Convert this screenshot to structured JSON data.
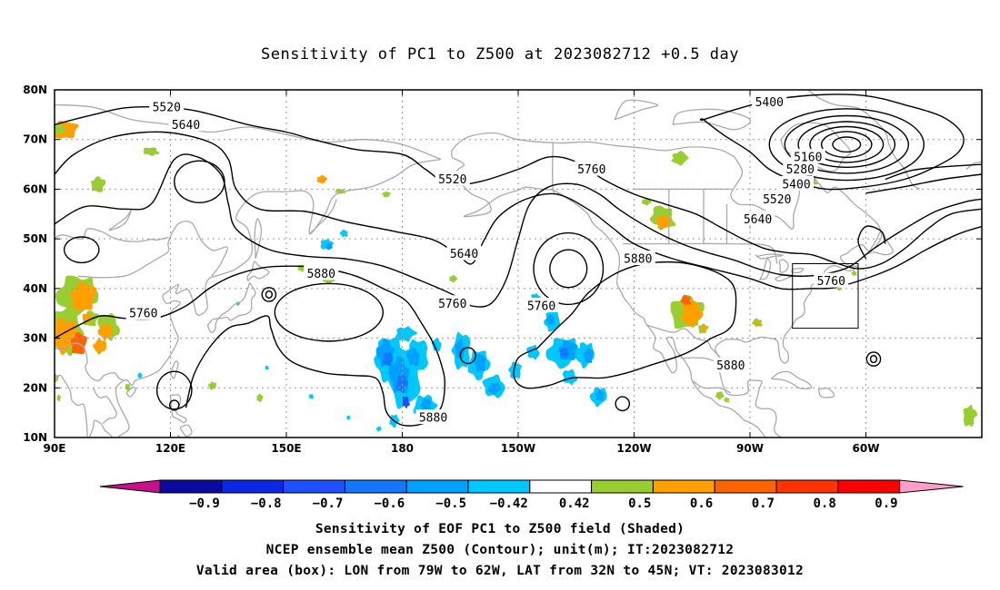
{
  "title": "Sensitivity of PC1 to Z500 at 2023082712 +0.5 day",
  "lat_labels": [
    "80N",
    "70N",
    "60N",
    "50N",
    "40N",
    "30N",
    "20N",
    "10N"
  ],
  "lon_labels": [
    "90E",
    "120E",
    "150E",
    "180",
    "150W",
    "120W",
    "90W",
    "60W"
  ],
  "contour_labels": [
    {
      "text": "5520",
      "lon": 119,
      "lat": 76.5
    },
    {
      "text": "5640",
      "lon": 124,
      "lat": 73
    },
    {
      "text": "5520",
      "lon": 193,
      "lat": 62
    },
    {
      "text": "5760",
      "lon": 229,
      "lat": 64
    },
    {
      "text": "5400",
      "lon": 275,
      "lat": 77.5
    },
    {
      "text": "5160",
      "lon": 285,
      "lat": 66.5
    },
    {
      "text": "5280",
      "lon": 283,
      "lat": 64
    },
    {
      "text": "5400",
      "lon": 282,
      "lat": 61
    },
    {
      "text": "5520",
      "lon": 277,
      "lat": 58
    },
    {
      "text": "5640",
      "lon": 272,
      "lat": 54
    },
    {
      "text": "5640",
      "lon": 196,
      "lat": 47
    },
    {
      "text": "5880",
      "lon": 159,
      "lat": 43
    },
    {
      "text": "5880",
      "lon": 241,
      "lat": 46
    },
    {
      "text": "5760",
      "lon": 193,
      "lat": 37
    },
    {
      "text": "5760",
      "lon": 216,
      "lat": 36.5
    },
    {
      "text": "5760",
      "lon": 291,
      "lat": 41.5
    },
    {
      "text": "5760",
      "lon": 113,
      "lat": 35
    },
    {
      "text": "5880",
      "lon": 265,
      "lat": 24.5
    },
    {
      "text": "5880",
      "lon": 188,
      "lat": 14
    }
  ],
  "colorbar": {
    "labels": [
      "-0.9",
      "-0.8",
      "-0.7",
      "-0.6",
      "-0.5",
      "-0.42",
      "0.42",
      "0.5",
      "0.6",
      "0.7",
      "0.8",
      "0.9"
    ],
    "colors": {
      "low_arrow": "#c8108c",
      "bins": [
        "#0a0aa0",
        "#0a28e6",
        "#1e50ff",
        "#1478ff",
        "#00a0ff",
        "#00c8ff",
        "#ffffff",
        "#9acd32",
        "#ffa000",
        "#ff6400",
        "#ff3200",
        "#ff0000"
      ],
      "high_arrow": "#ff9ec8"
    }
  },
  "valid_box": {
    "lon_min": 281,
    "lon_max": 298,
    "lat_min": 32,
    "lat_max": 45
  },
  "footer": {
    "line1": "Sensitivity of EOF PC1 to Z500 field (Shaded)",
    "line2": "NCEP ensemble mean Z500 (Contour); unit(m); IT:2023082712",
    "line3": "Valid area (box): LON from 79W to 62W, LAT from 32N to 45N; VT: 2023083012"
  },
  "map_colors": {
    "coast": "#a9a9a9",
    "contour": "#000000",
    "grid": "#9a9a9a",
    "frame": "#000000"
  }
}
